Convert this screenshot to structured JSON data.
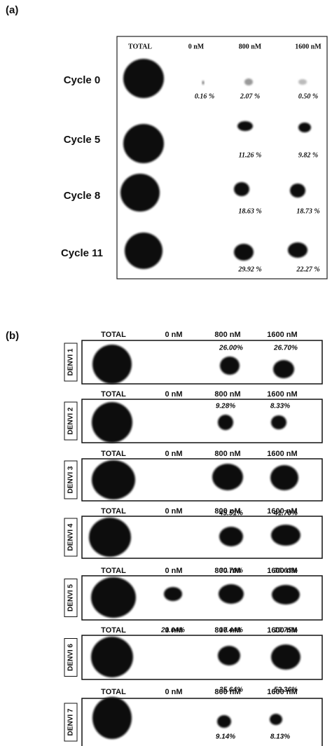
{
  "panel_a": {
    "label": "(a)",
    "columns": [
      "TOTAL",
      "0 nM",
      "800 nM",
      "1600 nM"
    ],
    "rows": [
      {
        "label": "Cycle 0",
        "percentages": [
          "0.16 %",
          "2.07 %",
          "0.50 %"
        ]
      },
      {
        "label": "Cycle 5",
        "percentages": [
          null,
          "11.26 %",
          "9.82 %"
        ]
      },
      {
        "label": "Cycle 8",
        "percentages": [
          null,
          "18.63 %",
          "18.73 %"
        ]
      },
      {
        "label": "Cycle 11",
        "percentages": [
          null,
          "29.92 %",
          "22.27 %"
        ]
      }
    ]
  },
  "panel_b": {
    "label": "(b)",
    "columns": [
      "TOTAL",
      "0 nM",
      "800 nM",
      "1600 nM"
    ],
    "rows": [
      {
        "label": "DENVI 1",
        "percentages": [
          null,
          "26.00%",
          "26.70%"
        ]
      },
      {
        "label": "DENVI 2",
        "percentages": [
          null,
          "9.28%",
          "8.33%"
        ]
      },
      {
        "label": "DENVI 3",
        "percentages": [
          null,
          "45.51%",
          "41.70%"
        ]
      },
      {
        "label": "DENVI 4",
        "percentages": [
          null,
          "30.70%",
          "36.63%"
        ]
      },
      {
        "label": "DENVI 5",
        "percentages": [
          "21.04%",
          "17.44%",
          "19.75%"
        ]
      },
      {
        "label": "DENVI 6",
        "percentages": [
          null,
          "35.64%",
          "52.36%"
        ]
      },
      {
        "label": "DENVI 7",
        "percentages": [
          null,
          "9.14%",
          "8.13%"
        ]
      }
    ]
  }
}
